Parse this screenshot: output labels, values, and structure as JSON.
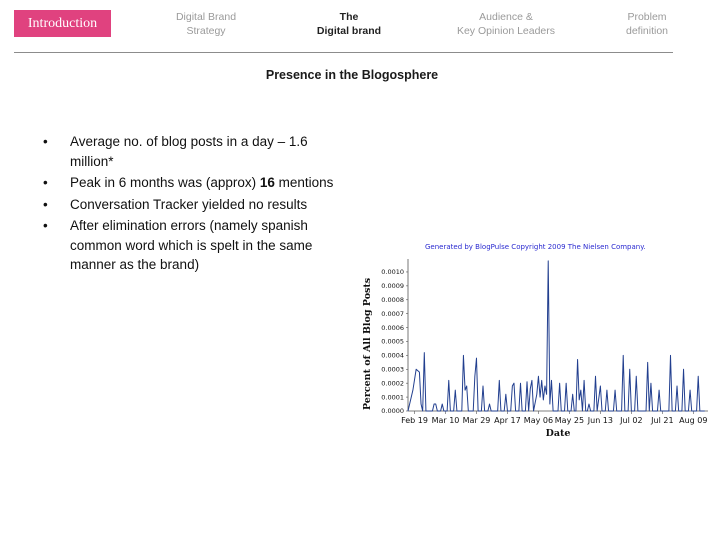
{
  "nav": {
    "introduction": "Introduction",
    "digital_brand_strategy": [
      "Digital Brand",
      "Strategy"
    ],
    "the_digital_brand": [
      "The",
      "Digital brand"
    ],
    "audience": [
      "Audience &",
      "Key Opinion Leaders"
    ],
    "problem": [
      "Problem",
      "definition"
    ]
  },
  "title": "Presence in the Blogosphere",
  "bullets": [
    {
      "pre": "Average no. of blog posts in a day – 1.6 million*",
      "bold": "",
      "post": ""
    },
    {
      "pre": "Peak in 6 months was (approx) ",
      "bold": "16",
      "post": " mentions"
    },
    {
      "pre": "Conversation Tracker yielded no results",
      "bold": "",
      "post": ""
    },
    {
      "pre": "After elimination errors (namely spanish common word which is spelt in the same manner as the brand)",
      "bold": "",
      "post": ""
    }
  ],
  "colors": {
    "accent": "#e0427f",
    "line": "#223f8f"
  },
  "chart_data": {
    "type": "line",
    "credit": "Generated by BlogPulse Copyright 2009 The Nielsen Company.",
    "xlabel": "Date",
    "ylabel": "Percent of All Blog Posts",
    "x_ticks": [
      "Feb 19",
      "Mar 10",
      "Mar 29",
      "Apr 17",
      "May 06",
      "May 25",
      "Jun 13",
      "Jul 02",
      "Jul 21",
      "Aug 09"
    ],
    "y_ticks": [
      "0.0000",
      "0.0001",
      "0.0002",
      "0.0003",
      "0.0004",
      "0.0005",
      "0.0006",
      "0.0007",
      "0.0008",
      "0.0009",
      "0.0010"
    ],
    "ylim": [
      0,
      0.00105
    ],
    "days_range": [
      0,
      184
    ],
    "series": [
      {
        "points": [
          [
            0,
            0
          ],
          [
            3,
            0.00015
          ],
          [
            5,
            0.0003
          ],
          [
            7,
            0.00028
          ],
          [
            8,
            5e-05
          ],
          [
            9,
            0
          ],
          [
            10,
            0.00042
          ],
          [
            11,
            0
          ],
          [
            15,
            0
          ],
          [
            16,
            5e-05
          ],
          [
            17,
            5e-05
          ],
          [
            18,
            0
          ],
          [
            20,
            0
          ],
          [
            21,
            5e-05
          ],
          [
            22,
            0
          ],
          [
            24,
            0
          ],
          [
            25,
            0.00022
          ],
          [
            26,
            0
          ],
          [
            28,
            0
          ],
          [
            29,
            0.00015
          ],
          [
            30,
            0
          ],
          [
            33,
            0
          ],
          [
            34,
            0.0004
          ],
          [
            35,
            0.00015
          ],
          [
            36,
            0.00018
          ],
          [
            37,
            0
          ],
          [
            40,
            0
          ],
          [
            41,
            0.00025
          ],
          [
            42,
            0.00038
          ],
          [
            43,
            0
          ],
          [
            45,
            0
          ],
          [
            46,
            0.00018
          ],
          [
            47,
            0
          ],
          [
            49,
            0
          ],
          [
            50,
            5e-05
          ],
          [
            51,
            0
          ],
          [
            55,
            0
          ],
          [
            56,
            0.00022
          ],
          [
            57,
            0
          ],
          [
            59,
            0
          ],
          [
            60,
            0.00012
          ],
          [
            61,
            0
          ],
          [
            63,
            0
          ],
          [
            64,
            0.00018
          ],
          [
            65,
            0.0002
          ],
          [
            66,
            0
          ],
          [
            68,
            0
          ],
          [
            69,
            0.0002
          ],
          [
            70,
            0
          ],
          [
            72,
            0
          ],
          [
            73,
            0.00021
          ],
          [
            74,
            0
          ],
          [
            75,
            0.00016
          ],
          [
            76,
            0.00022
          ],
          [
            77,
            0
          ],
          [
            79,
            0.00012
          ],
          [
            80,
            0.00025
          ],
          [
            81,
            0.0001
          ],
          [
            82,
            0.00022
          ],
          [
            83,
            8e-05
          ],
          [
            84,
            0.00018
          ],
          [
            85,
            0.00012
          ],
          [
            86,
            0.00108
          ],
          [
            87,
            5e-05
          ],
          [
            88,
            0.00022
          ],
          [
            89,
            0
          ],
          [
            92,
            0
          ],
          [
            93,
            0.0002
          ],
          [
            94,
            0
          ],
          [
            96,
            0
          ],
          [
            97,
            0.0002
          ],
          [
            98,
            0
          ],
          [
            100,
            0
          ],
          [
            101,
            0.00012
          ],
          [
            102,
            0
          ],
          [
            103,
            0
          ],
          [
            104,
            0.00037
          ],
          [
            105,
            8e-05
          ],
          [
            106,
            0.00015
          ],
          [
            107,
            0
          ],
          [
            108,
            0.00022
          ],
          [
            109,
            0
          ],
          [
            110,
            0
          ],
          [
            111,
            5e-05
          ],
          [
            112,
            0
          ],
          [
            114,
            0
          ],
          [
            115,
            0.00025
          ],
          [
            116,
            0
          ],
          [
            118,
            0.00018
          ],
          [
            119,
            0
          ],
          [
            121,
            0
          ],
          [
            122,
            0.00015
          ],
          [
            123,
            0
          ],
          [
            126,
            0
          ],
          [
            127,
            0.00015
          ],
          [
            128,
            0
          ],
          [
            131,
            0
          ],
          [
            132,
            0.0004
          ],
          [
            133,
            0
          ],
          [
            135,
            0
          ],
          [
            136,
            0.0003
          ],
          [
            137,
            0
          ],
          [
            139,
            0
          ],
          [
            140,
            0.00025
          ],
          [
            141,
            0
          ],
          [
            146,
            0
          ],
          [
            147,
            0.00035
          ],
          [
            148,
            0
          ],
          [
            149,
            0.0002
          ],
          [
            150,
            0
          ],
          [
            153,
            0
          ],
          [
            154,
            0.00015
          ],
          [
            155,
            0
          ],
          [
            160,
            0
          ],
          [
            161,
            0.0004
          ],
          [
            162,
            0
          ],
          [
            164,
            0
          ],
          [
            165,
            0.00018
          ],
          [
            166,
            0
          ],
          [
            168,
            0
          ],
          [
            169,
            0.0003
          ],
          [
            170,
            0
          ],
          [
            172,
            0
          ],
          [
            173,
            0.00015
          ],
          [
            174,
            0
          ],
          [
            177,
            0
          ],
          [
            178,
            0.00025
          ],
          [
            179,
            0
          ],
          [
            182,
            0
          ]
        ]
      }
    ]
  }
}
